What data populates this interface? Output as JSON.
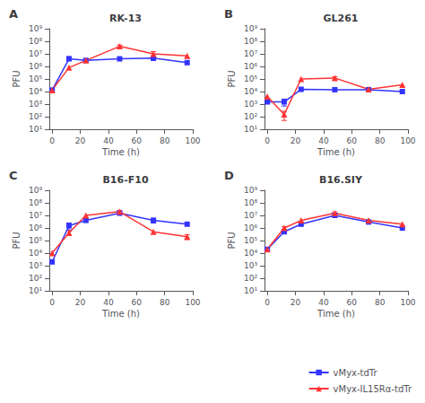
{
  "chart_data": [
    {
      "type": "line",
      "title": "RK-13",
      "annotations": [
        "A"
      ],
      "x_label": "Time (h)",
      "y_label": "PFU",
      "x": [
        0,
        12,
        24,
        48,
        72,
        96
      ],
      "series": [
        {
          "name": "vMyx-tdTr",
          "color": "#3333FF",
          "marker": "square",
          "values": [
            13000.0,
            4000000.0,
            3000000.0,
            4000000.0,
            4500000.0,
            2000000.0
          ],
          "yerr_lo": [
            0,
            1000000.0,
            0,
            0,
            1500000.0,
            0
          ],
          "yerr_hi": [
            0,
            2000000.0,
            0,
            0,
            2000000.0,
            0
          ]
        },
        {
          "name": "vMyx-IL15Rα-tdTr",
          "color": "#FF3333",
          "marker": "triangle",
          "values": [
            13000.0,
            800000.0,
            3000000.0,
            40000000.0,
            10000000.0,
            7000000.0
          ],
          "yerr_lo": [
            0,
            0,
            0,
            8000000.0,
            4000000.0,
            0
          ],
          "yerr_hi": [
            0,
            0,
            0,
            10000000.0,
            5000000.0,
            0
          ]
        }
      ],
      "log": "y",
      "grid": false,
      "legend": "lower right",
      "xlim": [
        -2,
        100
      ],
      "xticks": [
        0,
        20,
        40,
        60,
        80,
        100
      ],
      "ylim": [
        10,
        1000000000.0
      ],
      "yticks": [
        {
          "value": 10,
          "label": "10¹"
        },
        {
          "value": 100,
          "label": "10²"
        },
        {
          "value": 1000,
          "label": "10³"
        },
        {
          "value": 10000,
          "label": "10⁴"
        },
        {
          "value": 100000,
          "label": "10⁵"
        },
        {
          "value": 1000000,
          "label": "10⁶"
        },
        {
          "value": 10000000,
          "label": "10⁷"
        },
        {
          "value": 100000000,
          "label": "10⁸"
        },
        {
          "value": 1000000000,
          "label": "10⁹"
        }
      ]
    },
    {
      "type": "line",
      "title": "GL261",
      "annotations": [
        "B"
      ],
      "x_label": "Time (h)",
      "y_label": "PFU",
      "x": [
        0,
        12,
        24,
        48,
        72,
        96
      ],
      "series": [
        {
          "name": "vMyx-tdTr",
          "color": "#3333FF",
          "marker": "square",
          "values": [
            1500.0,
            1500.0,
            15000.0,
            14000.0,
            14000.0,
            10000.0
          ],
          "yerr_lo": [
            0,
            800.0,
            0,
            0,
            0,
            0
          ],
          "yerr_hi": [
            0,
            1000.0,
            0,
            0,
            0,
            0
          ]
        },
        {
          "name": "vMyx-IL15Rα-tdTr",
          "color": "#FF3333",
          "marker": "triangle",
          "values": [
            4000.0,
            150.0,
            100000.0,
            120000.0,
            15000.0,
            35000.0
          ],
          "yerr_lo": [
            0,
            100.0,
            0,
            20000.0,
            0,
            0
          ],
          "yerr_hi": [
            0,
            120.0,
            0,
            30000.0,
            0,
            0
          ]
        }
      ],
      "log": "y",
      "grid": false,
      "legend": "lower right",
      "xlim": [
        -2,
        100
      ],
      "xticks": [
        0,
        20,
        40,
        60,
        80,
        100
      ],
      "ylim": [
        10,
        1000000000.0
      ],
      "yticks": [
        {
          "value": 10,
          "label": "10¹"
        },
        {
          "value": 100,
          "label": "10²"
        },
        {
          "value": 1000,
          "label": "10³"
        },
        {
          "value": 10000,
          "label": "10⁴"
        },
        {
          "value": 100000,
          "label": "10⁵"
        },
        {
          "value": 1000000,
          "label": "10⁶"
        },
        {
          "value": 10000000,
          "label": "10⁷"
        },
        {
          "value": 100000000,
          "label": "10⁸"
        },
        {
          "value": 1000000000,
          "label": "10⁹"
        }
      ]
    },
    {
      "type": "line",
      "title": "B16-F10",
      "annotations": [
        "C"
      ],
      "x_label": "Time (h)",
      "y_label": "PFU",
      "x": [
        0,
        12,
        24,
        48,
        72,
        96
      ],
      "series": [
        {
          "name": "vMyx-tdTr",
          "color": "#3333FF",
          "marker": "square",
          "values": [
            2000.0,
            1500000.0,
            4000000.0,
            15000000.0,
            4000000.0,
            2000000.0
          ],
          "yerr_lo": [
            0,
            800000.0,
            0,
            0,
            1500000.0,
            0
          ],
          "yerr_hi": [
            0,
            1000000.0,
            0,
            0,
            2000000.0,
            0
          ]
        },
        {
          "name": "vMyx-IL15Rα-tdTr",
          "color": "#FF3333",
          "marker": "triangle",
          "values": [
            10000.0,
            400000.0,
            10000000.0,
            20000000.0,
            500000.0,
            200000.0
          ],
          "yerr_lo": [
            0,
            150000.0,
            0,
            4000000.0,
            0,
            80000.0
          ],
          "yerr_hi": [
            0,
            200000.0,
            0,
            5000000.0,
            0,
            100000.0
          ]
        }
      ],
      "log": "y",
      "grid": false,
      "legend": "lower right",
      "xlim": [
        -2,
        100
      ],
      "xticks": [
        0,
        20,
        40,
        60,
        80,
        100
      ],
      "ylim": [
        10,
        1000000000.0
      ],
      "yticks": [
        {
          "value": 10,
          "label": "10¹"
        },
        {
          "value": 100,
          "label": "10²"
        },
        {
          "value": 1000,
          "label": "10³"
        },
        {
          "value": 10000,
          "label": "10⁴"
        },
        {
          "value": 100000,
          "label": "10⁵"
        },
        {
          "value": 1000000,
          "label": "10⁶"
        },
        {
          "value": 10000000,
          "label": "10⁷"
        },
        {
          "value": 100000000,
          "label": "10⁸"
        },
        {
          "value": 1000000000,
          "label": "10⁹"
        }
      ]
    },
    {
      "type": "line",
      "title": "B16.SIY",
      "annotations": [
        "D"
      ],
      "x_label": "Time (h)",
      "y_label": "PFU",
      "x": [
        0,
        12,
        24,
        48,
        72,
        96
      ],
      "series": [
        {
          "name": "vMyx-tdTr",
          "color": "#3333FF",
          "marker": "square",
          "values": [
            20000.0,
            500000.0,
            2000000.0,
            10000000.0,
            3000000.0,
            1000000.0
          ],
          "yerr_lo": [
            0,
            150000.0,
            0,
            2000000.0,
            0,
            0
          ],
          "yerr_hi": [
            0,
            200000.0,
            0,
            3000000.0,
            0,
            0
          ]
        },
        {
          "name": "vMyx-IL15Rα-tdTr",
          "color": "#FF3333",
          "marker": "triangle",
          "values": [
            20000.0,
            1000000.0,
            4000000.0,
            15000000.0,
            4000000.0,
            2000000.0
          ],
          "yerr_lo": [
            0,
            200000.0,
            0,
            3000000.0,
            0,
            0
          ],
          "yerr_hi": [
            0,
            300000.0,
            0,
            4000000.0,
            0,
            0
          ]
        }
      ],
      "log": "y",
      "grid": false,
      "legend": "lower right",
      "xlim": [
        -2,
        100
      ],
      "xticks": [
        0,
        20,
        40,
        60,
        80,
        100
      ],
      "ylim": [
        10,
        1000000000.0
      ],
      "yticks": [
        {
          "value": 10,
          "label": "10¹"
        },
        {
          "value": 100,
          "label": "10²"
        },
        {
          "value": 1000,
          "label": "10³"
        },
        {
          "value": 10000,
          "label": "10⁴"
        },
        {
          "value": 100000,
          "label": "10⁵"
        },
        {
          "value": 1000000,
          "label": "10⁶"
        },
        {
          "value": 10000000,
          "label": "10⁷"
        },
        {
          "value": 100000000,
          "label": "10⁸"
        },
        {
          "value": 1000000000,
          "label": "10⁹"
        }
      ]
    }
  ]
}
